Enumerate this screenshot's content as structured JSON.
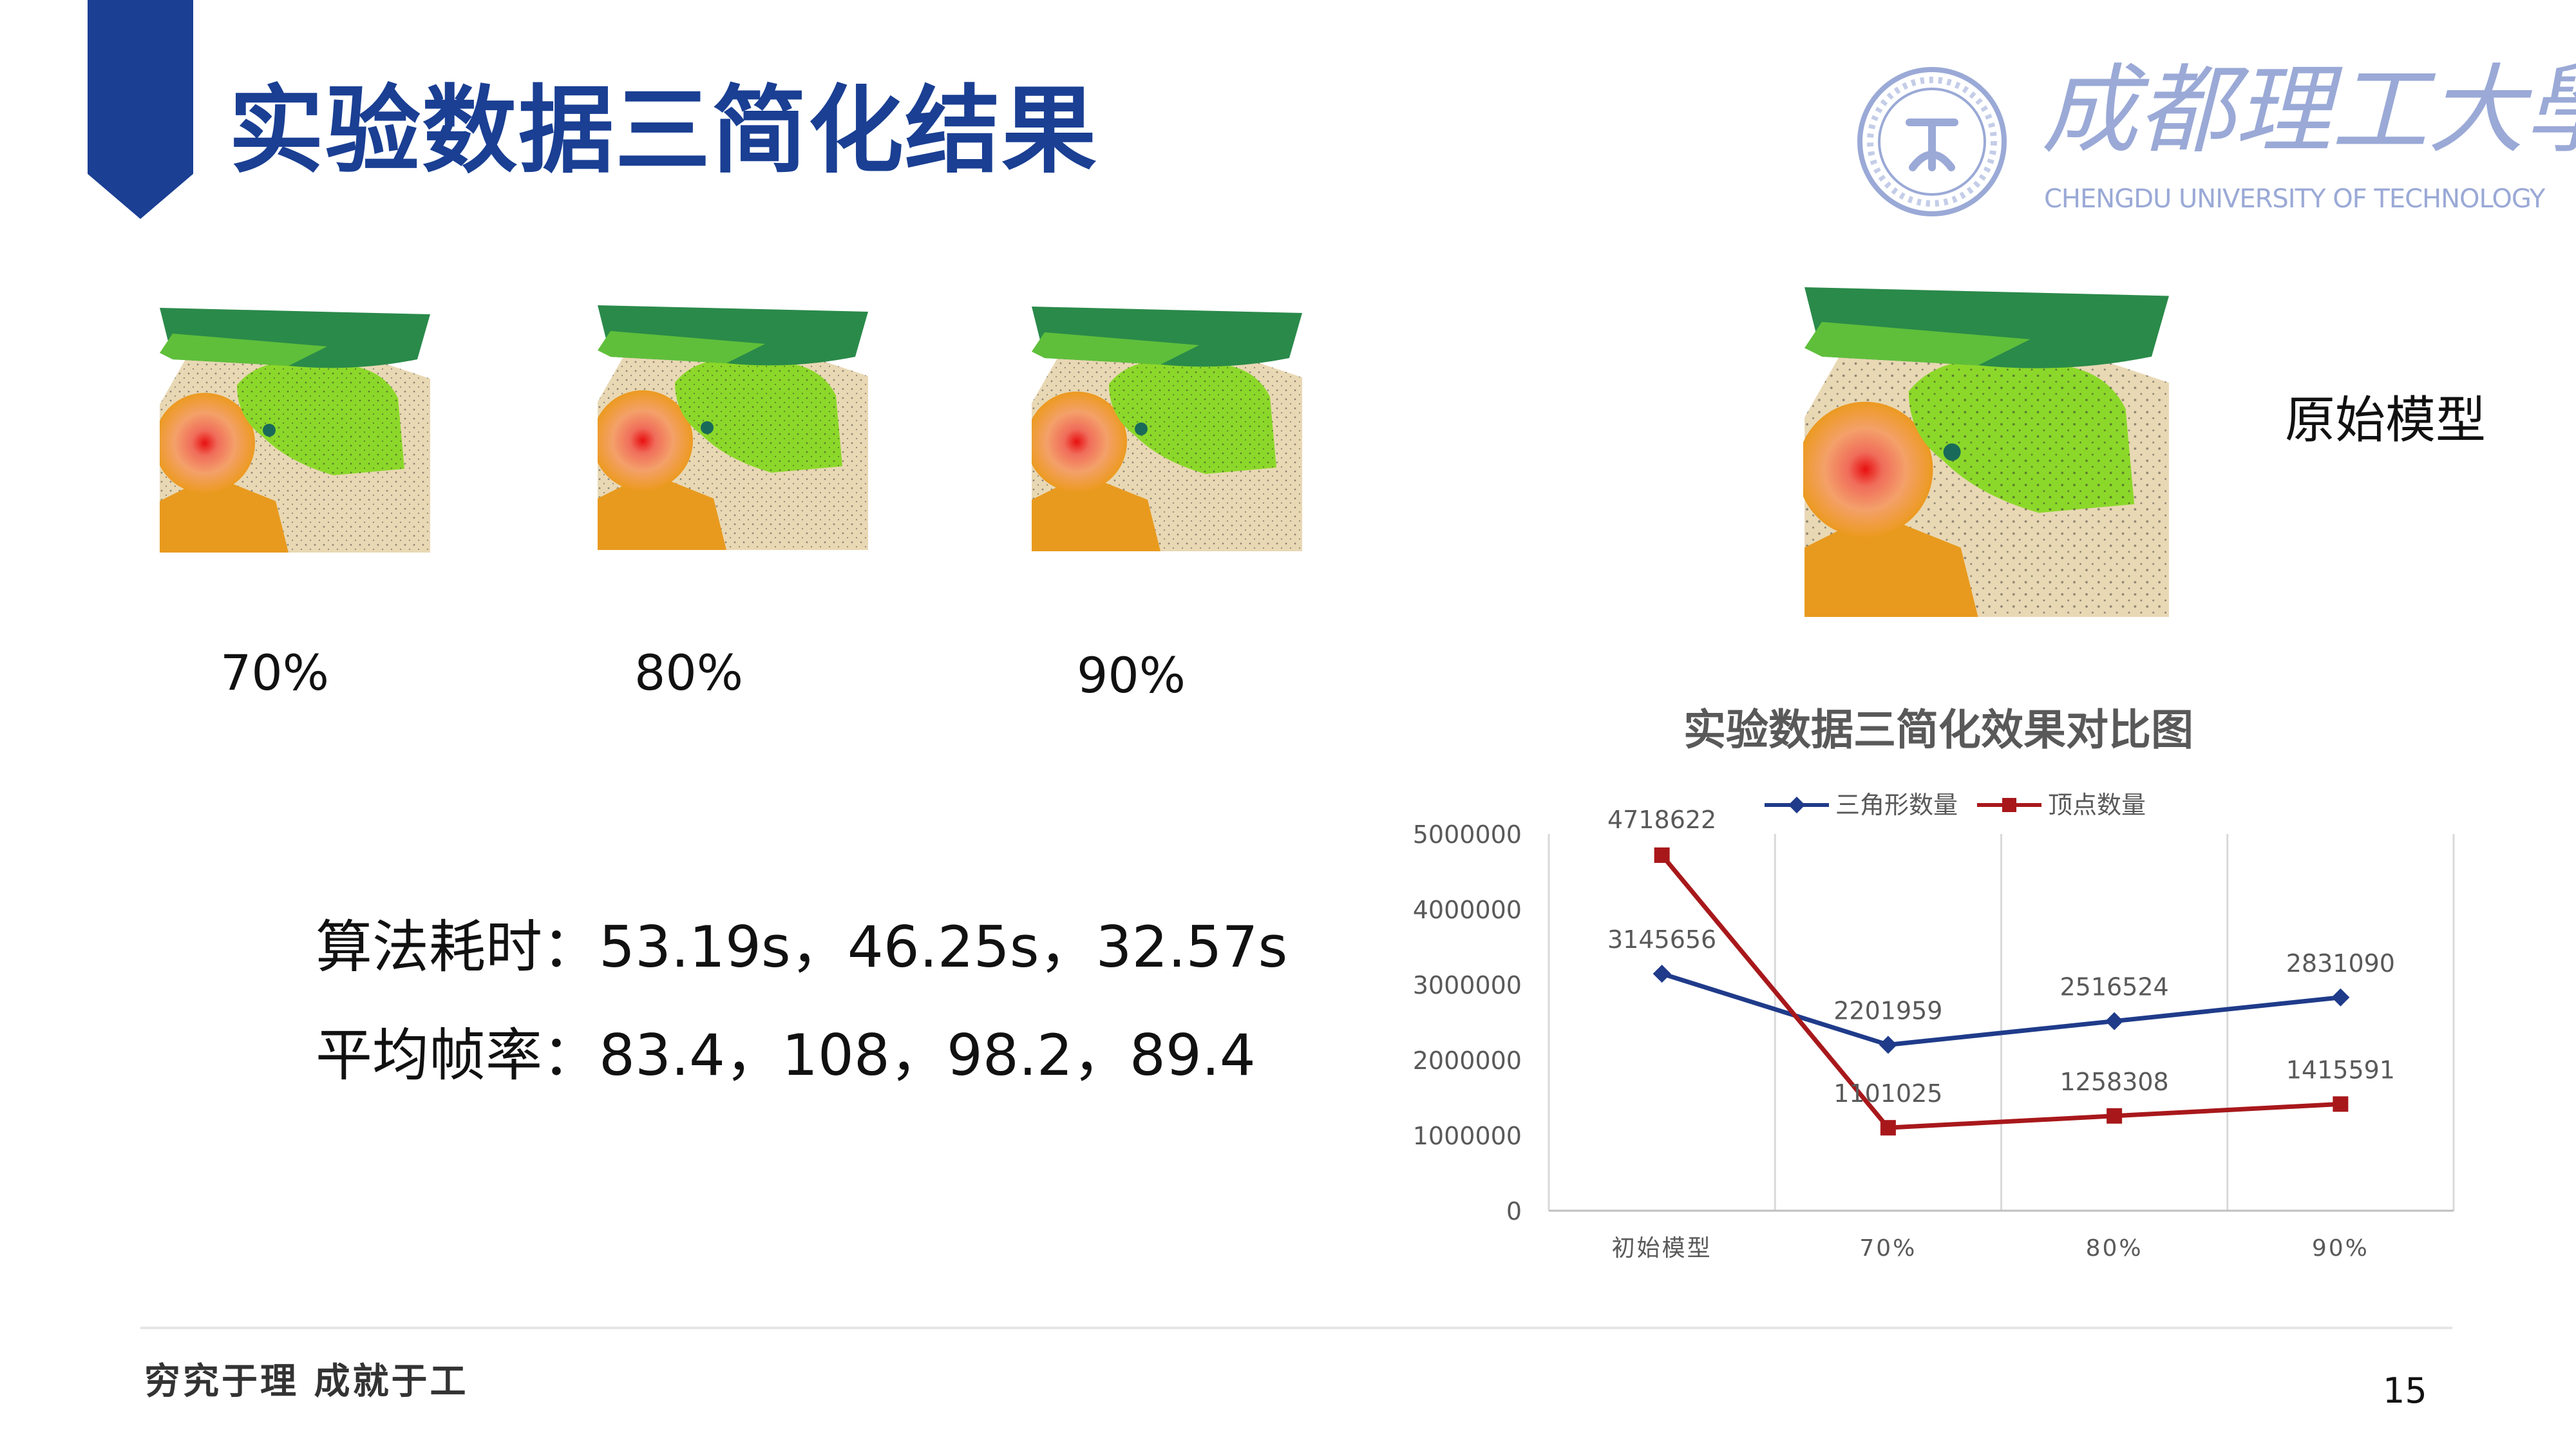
{
  "header": {
    "title": "实验数据三简化结果",
    "banner_color": "#1a3f93"
  },
  "logo": {
    "name_cn": "成都理工大學",
    "name_en": "CHENGDU UNIVERSITY OF TECHNOLOGY",
    "seal_icon": "university-seal-icon",
    "color": "#9aa9d6"
  },
  "thumbnails": [
    {
      "label": "70%"
    },
    {
      "label": "80%"
    },
    {
      "label": "90%"
    }
  ],
  "original": {
    "label": "原始模型"
  },
  "stats": {
    "time_line": "算法耗时：53.19s，46.25s，32.57s",
    "fps_line": "平均帧率：83.4，108，98.2，89.4"
  },
  "chart_data": {
    "type": "line",
    "title": "实验数据三简化效果对比图",
    "categories": [
      "初始模型",
      "70%",
      "80%",
      "90%"
    ],
    "series": [
      {
        "name": "三角形数量",
        "values": [
          3145656,
          2201959,
          2516524,
          2831090
        ],
        "color": "#1f3b8a",
        "marker": "diamond"
      },
      {
        "name": "顶点数量",
        "values": [
          4718622,
          1101025,
          1258308,
          1415591
        ],
        "color": "#a8181b",
        "marker": "square"
      }
    ],
    "ylim": [
      0,
      5000000
    ],
    "yticks": [
      "0",
      "1000000",
      "2000000",
      "3000000",
      "4000000",
      "5000000"
    ],
    "legend": "top",
    "grid": "vertical"
  },
  "footer": {
    "slogan": "穷究于理  成就于工",
    "page": "15"
  }
}
